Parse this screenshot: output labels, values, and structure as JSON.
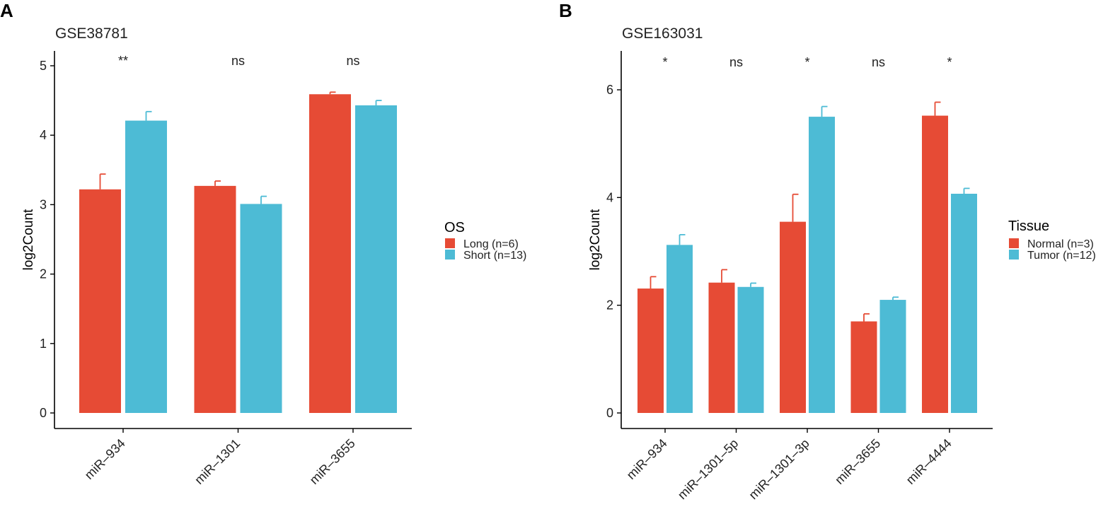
{
  "colors": {
    "series1": "#E64B35",
    "series2": "#4DBBD5",
    "axis": "#000000",
    "text": "#222222"
  },
  "chart_data": [
    {
      "panel": "A",
      "type": "bar",
      "title": "GSE38781",
      "xlabel": "",
      "ylabel": "log2Count",
      "ylim": [
        0,
        5.0
      ],
      "yticks": [
        0,
        1,
        2,
        3,
        4,
        5
      ],
      "ytick_labels": [
        "0",
        "1",
        "2",
        "3",
        "4",
        "5"
      ],
      "categories": [
        "miR–934",
        "miR–1301",
        "miR–3655"
      ],
      "series": [
        {
          "name": "Long (n=6)",
          "values": [
            3.22,
            3.27,
            4.59
          ],
          "errors": [
            0.22,
            0.07,
            0.03
          ]
        },
        {
          "name": "Short (n=13)",
          "values": [
            4.21,
            3.01,
            4.43
          ],
          "errors": [
            0.13,
            0.11,
            0.07
          ]
        }
      ],
      "significance": [
        "**",
        "ns",
        "ns"
      ],
      "legend": {
        "title": "OS",
        "position": "right",
        "entries": [
          "Long (n=6)",
          "Short (n=13)"
        ]
      }
    },
    {
      "panel": "B",
      "type": "bar",
      "title": "GSE163031",
      "xlabel": "",
      "ylabel": "log2Count",
      "ylim": [
        0,
        6.6
      ],
      "yticks": [
        0,
        2,
        4,
        6
      ],
      "ytick_labels": [
        "0",
        "2",
        "4",
        "6"
      ],
      "categories": [
        "miR–934",
        "miR–1301–5p",
        "miR–1301–3p",
        "miR–3655",
        "miR–4444"
      ],
      "series": [
        {
          "name": "Normal (n=3)",
          "values": [
            2.31,
            2.42,
            3.55,
            1.7,
            5.52
          ],
          "errors": [
            0.22,
            0.24,
            0.51,
            0.14,
            0.25
          ]
        },
        {
          "name": "Tumor (n=12)",
          "values": [
            3.12,
            2.34,
            5.5,
            2.1,
            4.07
          ],
          "errors": [
            0.19,
            0.07,
            0.19,
            0.05,
            0.1
          ]
        }
      ],
      "significance": [
        "*",
        "ns",
        "*",
        "ns",
        "*"
      ],
      "legend": {
        "title": "Tissue",
        "position": "right",
        "entries": [
          "Normal (n=3)",
          "Tumor (n=12)"
        ]
      }
    }
  ]
}
